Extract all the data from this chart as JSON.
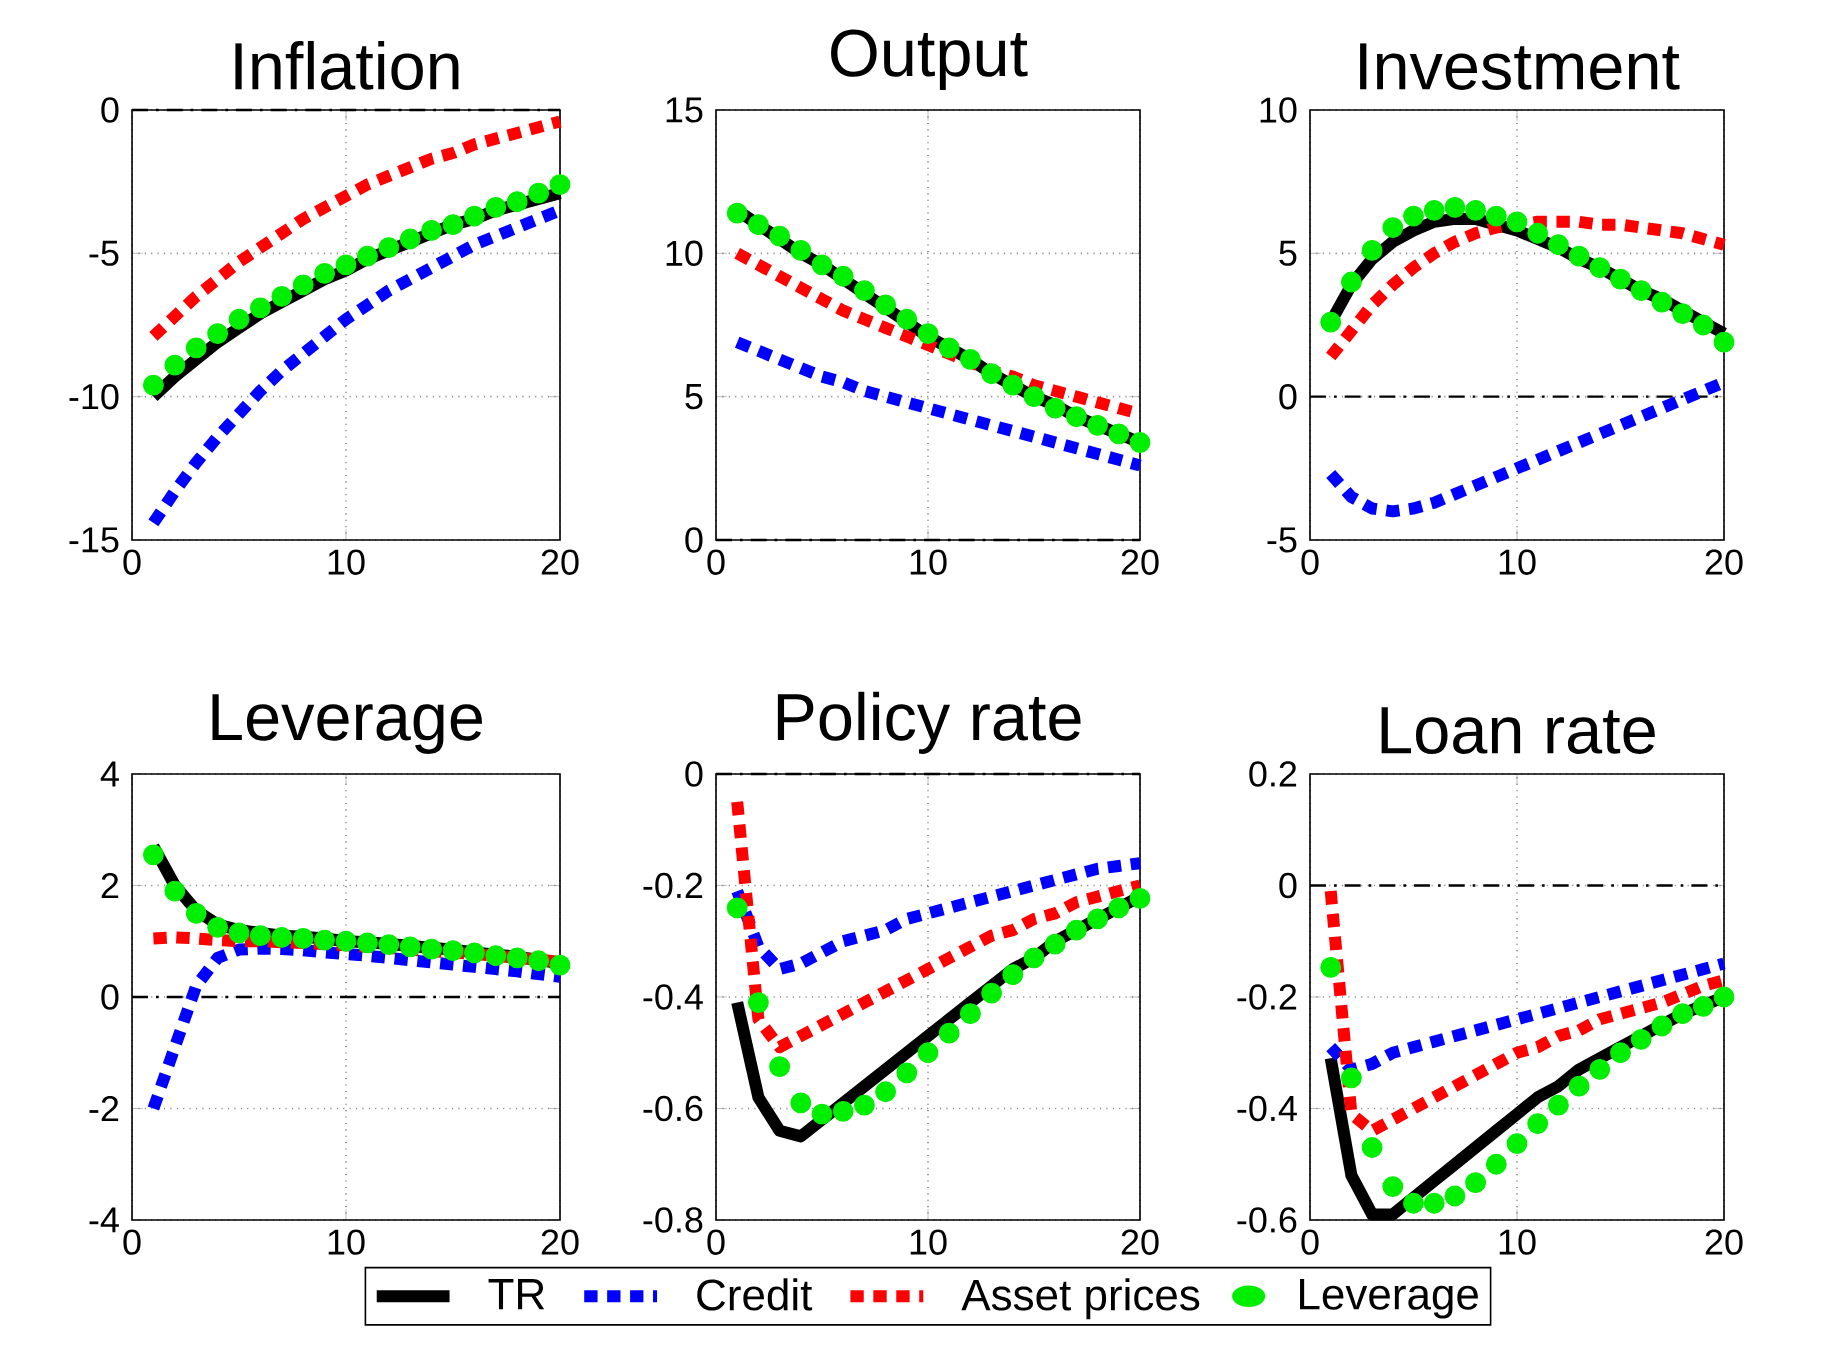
{
  "chart_data": [
    {
      "type": "line",
      "title": "Inflation",
      "x": [
        1,
        2,
        3,
        4,
        5,
        6,
        7,
        8,
        9,
        10,
        11,
        12,
        13,
        14,
        15,
        16,
        17,
        18,
        19,
        20
      ],
      "xlim": [
        0,
        20
      ],
      "xticks": [
        0,
        10,
        20
      ],
      "ylim": [
        -15,
        0
      ],
      "yticks": [
        -15,
        -10,
        -5,
        0
      ],
      "grid": true,
      "ref_lines": [
        {
          "axis": "y",
          "value": 0,
          "color": "#000000",
          "line_style": "dashed"
        }
      ],
      "series": [
        {
          "color": "#000000",
          "line_style": "solid",
          "values": [
            -10.0,
            -9.3,
            -8.7,
            -8.1,
            -7.6,
            -7.1,
            -6.7,
            -6.3,
            -5.9,
            -5.6,
            -5.2,
            -4.9,
            -4.6,
            -4.3,
            -4.0,
            -3.8,
            -3.5,
            -3.3,
            -3.1,
            -2.9
          ]
        },
        {
          "color": "#0000ff",
          "line_style": "dashed",
          "values": [
            -14.4,
            -13.3,
            -12.3,
            -11.4,
            -10.6,
            -9.8,
            -9.1,
            -8.5,
            -7.9,
            -7.3,
            -6.8,
            -6.3,
            -5.9,
            -5.5,
            -5.1,
            -4.7,
            -4.4,
            -4.1,
            -3.8,
            -3.5
          ]
        },
        {
          "color": "#ff0000",
          "line_style": "dashed",
          "values": [
            -7.9,
            -7.2,
            -6.5,
            -5.9,
            -5.3,
            -4.8,
            -4.3,
            -3.8,
            -3.4,
            -3.0,
            -2.6,
            -2.3,
            -2.0,
            -1.7,
            -1.5,
            -1.2,
            -1.0,
            -0.8,
            -0.6,
            -0.4
          ]
        },
        {
          "type": "scatter",
          "marker": "circle",
          "color": "#00ee00",
          "values": [
            -9.6,
            -8.9,
            -8.3,
            -7.8,
            -7.3,
            -6.9,
            -6.5,
            -6.1,
            -5.7,
            -5.4,
            -5.1,
            -4.8,
            -4.5,
            -4.2,
            -4.0,
            -3.7,
            -3.4,
            -3.2,
            -2.9,
            -2.6
          ]
        }
      ]
    },
    {
      "type": "line",
      "title": "Output",
      "x": [
        1,
        2,
        3,
        4,
        5,
        6,
        7,
        8,
        9,
        10,
        11,
        12,
        13,
        14,
        15,
        16,
        17,
        18,
        19,
        20
      ],
      "xlim": [
        0,
        20
      ],
      "xticks": [
        0,
        10,
        20
      ],
      "ylim": [
        0,
        15
      ],
      "yticks": [
        0,
        5,
        10,
        15
      ],
      "grid": true,
      "ref_lines": [
        {
          "axis": "y",
          "value": 0,
          "color": "#000000",
          "line_style": "dashed"
        }
      ],
      "series": [
        {
          "color": "#000000",
          "line_style": "solid",
          "values": [
            11.5,
            11.0,
            10.5,
            10.0,
            9.6,
            9.1,
            8.6,
            8.1,
            7.6,
            7.1,
            6.7,
            6.3,
            5.8,
            5.4,
            5.0,
            4.7,
            4.3,
            4.0,
            3.7,
            3.4
          ]
        },
        {
          "color": "#0000ff",
          "line_style": "dashed",
          "values": [
            6.9,
            6.6,
            6.3,
            6.0,
            5.7,
            5.5,
            5.2,
            5.0,
            4.8,
            4.6,
            4.4,
            4.2,
            4.0,
            3.8,
            3.6,
            3.4,
            3.2,
            3.0,
            2.8,
            2.6
          ]
        },
        {
          "color": "#ff0000",
          "line_style": "dashed",
          "values": [
            10.0,
            9.6,
            9.2,
            8.8,
            8.4,
            8.0,
            7.7,
            7.4,
            7.1,
            6.8,
            6.5,
            6.2,
            5.9,
            5.7,
            5.4,
            5.2,
            5.0,
            4.8,
            4.6,
            4.4
          ]
        },
        {
          "type": "scatter",
          "marker": "circle",
          "color": "#00ee00",
          "values": [
            11.4,
            11.0,
            10.6,
            10.1,
            9.6,
            9.2,
            8.7,
            8.2,
            7.7,
            7.2,
            6.7,
            6.3,
            5.8,
            5.4,
            5.0,
            4.6,
            4.3,
            4.0,
            3.7,
            3.4
          ]
        }
      ]
    },
    {
      "type": "line",
      "title": "Investment",
      "x": [
        1,
        2,
        3,
        4,
        5,
        6,
        7,
        8,
        9,
        10,
        11,
        12,
        13,
        14,
        15,
        16,
        17,
        18,
        19,
        20
      ],
      "xlim": [
        0,
        20
      ],
      "xticks": [
        0,
        10,
        20
      ],
      "ylim": [
        -5,
        10
      ],
      "yticks": [
        -5,
        0,
        5,
        10
      ],
      "grid": true,
      "ref_lines": [
        {
          "axis": "y",
          "value": 0,
          "color": "#000000",
          "line_style": "dashed"
        }
      ],
      "series": [
        {
          "color": "#000000",
          "line_style": "solid",
          "values": [
            2.6,
            3.9,
            4.8,
            5.4,
            5.8,
            6.1,
            6.2,
            6.2,
            6.0,
            5.8,
            5.5,
            5.2,
            4.8,
            4.5,
            4.1,
            3.7,
            3.4,
            3.0,
            2.6,
            2.2
          ]
        },
        {
          "color": "#0000ff",
          "line_style": "dashed",
          "values": [
            -2.7,
            -3.5,
            -3.9,
            -4.0,
            -3.9,
            -3.7,
            -3.4,
            -3.1,
            -2.8,
            -2.5,
            -2.2,
            -1.9,
            -1.6,
            -1.3,
            -1.0,
            -0.7,
            -0.4,
            -0.1,
            0.2,
            0.5
          ]
        },
        {
          "color": "#ff0000",
          "line_style": "dashed",
          "values": [
            1.4,
            2.3,
            3.2,
            3.9,
            4.5,
            5.0,
            5.4,
            5.7,
            5.9,
            6.0,
            6.1,
            6.1,
            6.1,
            6.0,
            6.0,
            5.9,
            5.8,
            5.7,
            5.5,
            5.3
          ]
        },
        {
          "type": "scatter",
          "marker": "circle",
          "color": "#00ee00",
          "values": [
            2.6,
            4.0,
            5.1,
            5.9,
            6.3,
            6.5,
            6.6,
            6.5,
            6.3,
            6.1,
            5.7,
            5.3,
            4.9,
            4.5,
            4.1,
            3.7,
            3.3,
            2.9,
            2.5,
            1.9
          ]
        }
      ]
    },
    {
      "type": "line",
      "title": "Leverage",
      "x": [
        1,
        2,
        3,
        4,
        5,
        6,
        7,
        8,
        9,
        10,
        11,
        12,
        13,
        14,
        15,
        16,
        17,
        18,
        19,
        20
      ],
      "xlim": [
        0,
        20
      ],
      "xticks": [
        0,
        10,
        20
      ],
      "ylim": [
        -4,
        4
      ],
      "yticks": [
        -4,
        -2,
        0,
        2,
        4
      ],
      "grid": true,
      "ref_lines": [
        {
          "axis": "y",
          "value": 0,
          "color": "#000000",
          "line_style": "dashed"
        }
      ],
      "series": [
        {
          "color": "#000000",
          "line_style": "solid",
          "values": [
            2.7,
            2.0,
            1.55,
            1.3,
            1.2,
            1.15,
            1.1,
            1.08,
            1.05,
            1.0,
            0.98,
            0.95,
            0.92,
            0.88,
            0.85,
            0.8,
            0.76,
            0.72,
            0.67,
            0.6
          ]
        },
        {
          "color": "#0000ff",
          "line_style": "dashed",
          "values": [
            -2.0,
            -0.9,
            0.2,
            0.7,
            0.85,
            0.87,
            0.86,
            0.84,
            0.8,
            0.77,
            0.74,
            0.7,
            0.66,
            0.62,
            0.58,
            0.54,
            0.5,
            0.46,
            0.41,
            0.36
          ]
        },
        {
          "color": "#ff0000",
          "line_style": "dashed",
          "values": [
            1.05,
            1.07,
            1.05,
            1.02,
            1.0,
            1.0,
            0.98,
            0.97,
            0.95,
            0.93,
            0.9,
            0.88,
            0.85,
            0.82,
            0.8,
            0.77,
            0.74,
            0.7,
            0.67,
            0.63
          ]
        },
        {
          "type": "scatter",
          "marker": "circle",
          "color": "#00ee00",
          "values": [
            2.55,
            1.9,
            1.5,
            1.25,
            1.15,
            1.1,
            1.07,
            1.05,
            1.02,
            1.0,
            0.97,
            0.94,
            0.9,
            0.86,
            0.83,
            0.79,
            0.74,
            0.7,
            0.65,
            0.57
          ]
        }
      ]
    },
    {
      "type": "line",
      "title": "Policy rate",
      "x": [
        1,
        2,
        3,
        4,
        5,
        6,
        7,
        8,
        9,
        10,
        11,
        12,
        13,
        14,
        15,
        16,
        17,
        18,
        19,
        20
      ],
      "xlim": [
        0,
        20
      ],
      "xticks": [
        0,
        10,
        20
      ],
      "ylim": [
        -0.8,
        0
      ],
      "yticks": [
        -0.8,
        -0.6,
        -0.4,
        -0.2,
        0
      ],
      "grid": true,
      "legend": "bottom",
      "ref_lines": [
        {
          "axis": "y",
          "value": 0,
          "color": "#000000",
          "line_style": "dashed"
        }
      ],
      "series": [
        {
          "name": "TR",
          "color": "#000000",
          "line_style": "solid",
          "values": [
            -0.41,
            -0.58,
            -0.64,
            -0.65,
            -0.62,
            -0.59,
            -0.56,
            -0.53,
            -0.5,
            -0.47,
            -0.44,
            -0.41,
            -0.38,
            -0.35,
            -0.33,
            -0.3,
            -0.28,
            -0.26,
            -0.24,
            -0.22
          ]
        },
        {
          "name": "Credit",
          "color": "#0000ff",
          "line_style": "dashed",
          "values": [
            -0.21,
            -0.31,
            -0.35,
            -0.34,
            -0.32,
            -0.3,
            -0.29,
            -0.28,
            -0.26,
            -0.25,
            -0.24,
            -0.23,
            -0.22,
            -0.21,
            -0.2,
            -0.19,
            -0.18,
            -0.17,
            -0.165,
            -0.16
          ]
        },
        {
          "name": "Asset prices",
          "color": "#ff0000",
          "line_style": "dashed",
          "values": [
            -0.05,
            -0.44,
            -0.49,
            -0.47,
            -0.45,
            -0.43,
            -0.41,
            -0.39,
            -0.37,
            -0.35,
            -0.33,
            -0.31,
            -0.29,
            -0.28,
            -0.26,
            -0.25,
            -0.23,
            -0.22,
            -0.21,
            -0.2
          ]
        },
        {
          "name": "Leverage",
          "type": "scatter",
          "marker": "circle",
          "color": "#00ee00",
          "values": [
            -0.24,
            -0.41,
            -0.525,
            -0.59,
            -0.61,
            -0.605,
            -0.594,
            -0.57,
            -0.536,
            -0.5,
            -0.465,
            -0.43,
            -0.393,
            -0.36,
            -0.33,
            -0.305,
            -0.28,
            -0.26,
            -0.24,
            -0.223
          ]
        }
      ]
    },
    {
      "type": "line",
      "title": "Loan rate",
      "x": [
        1,
        2,
        3,
        4,
        5,
        6,
        7,
        8,
        9,
        10,
        11,
        12,
        13,
        14,
        15,
        16,
        17,
        18,
        19,
        20
      ],
      "xlim": [
        0,
        20
      ],
      "xticks": [
        0,
        10,
        20
      ],
      "ylim": [
        -0.6,
        0.2
      ],
      "yticks": [
        -0.6,
        -0.4,
        -0.2,
        0,
        0.2
      ],
      "grid": true,
      "ref_lines": [
        {
          "axis": "y",
          "value": 0,
          "color": "#000000",
          "line_style": "dashed"
        }
      ],
      "series": [
        {
          "color": "#000000",
          "line_style": "solid",
          "values": [
            -0.31,
            -0.52,
            -0.59,
            -0.59,
            -0.56,
            -0.53,
            -0.5,
            -0.47,
            -0.44,
            -0.41,
            -0.38,
            -0.36,
            -0.33,
            -0.31,
            -0.29,
            -0.27,
            -0.25,
            -0.23,
            -0.215,
            -0.2
          ]
        },
        {
          "color": "#0000ff",
          "line_style": "dashed",
          "values": [
            -0.29,
            -0.33,
            -0.32,
            -0.3,
            -0.29,
            -0.28,
            -0.27,
            -0.26,
            -0.25,
            -0.24,
            -0.23,
            -0.22,
            -0.21,
            -0.2,
            -0.19,
            -0.18,
            -0.17,
            -0.16,
            -0.15,
            -0.14
          ]
        },
        {
          "color": "#ff0000",
          "line_style": "dashed",
          "values": [
            -0.01,
            -0.41,
            -0.44,
            -0.42,
            -0.4,
            -0.38,
            -0.36,
            -0.34,
            -0.32,
            -0.3,
            -0.29,
            -0.27,
            -0.26,
            -0.24,
            -0.23,
            -0.22,
            -0.21,
            -0.195,
            -0.18,
            -0.17
          ]
        },
        {
          "type": "scatter",
          "marker": "circle",
          "color": "#00ee00",
          "values": [
            -0.147,
            -0.345,
            -0.47,
            -0.54,
            -0.57,
            -0.57,
            -0.557,
            -0.533,
            -0.5,
            -0.463,
            -0.427,
            -0.394,
            -0.36,
            -0.33,
            -0.3,
            -0.276,
            -0.252,
            -0.23,
            -0.217,
            -0.2
          ]
        }
      ]
    }
  ]
}
